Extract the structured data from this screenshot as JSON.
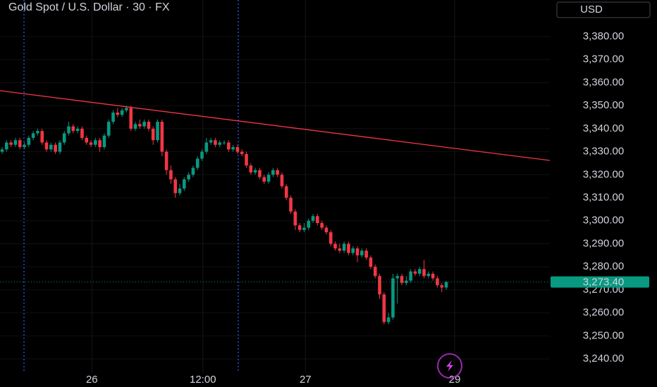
{
  "chart_data": {
    "type": "candlestick",
    "title": "Gold Spot / U.S. Dollar · 30 · FX",
    "currency": "USD",
    "up_color": "#089981",
    "down_color": "#f23645",
    "candles": [
      [
        3330,
        3332,
        3329,
        3331
      ],
      [
        3331,
        3335,
        3330,
        3334
      ],
      [
        3334,
        3335,
        3332,
        3333
      ],
      [
        3333,
        3336,
        3332,
        3335
      ],
      [
        3335,
        3336,
        3331,
        3332
      ],
      [
        3332,
        3334,
        3331,
        3333
      ],
      [
        3333,
        3337,
        3332,
        3336
      ],
      [
        3336,
        3339,
        3335,
        3338
      ],
      [
        3338,
        3340,
        3337,
        3339
      ],
      [
        3339,
        3340,
        3333,
        3334
      ],
      [
        3334,
        3335,
        3330,
        3331
      ],
      [
        3331,
        3334,
        3330,
        3333
      ],
      [
        3333,
        3334,
        3329,
        3330
      ],
      [
        3330,
        3335,
        3329,
        3334
      ],
      [
        3334,
        3339,
        3333,
        3338
      ],
      [
        3338,
        3343,
        3337,
        3341
      ],
      [
        3341,
        3342,
        3338,
        3339
      ],
      [
        3339,
        3341,
        3338,
        3340
      ],
      [
        3340,
        3341,
        3335,
        3336
      ],
      [
        3336,
        3337,
        3333,
        3334
      ],
      [
        3334,
        3335,
        3332,
        3333
      ],
      [
        3333,
        3336,
        3332,
        3335
      ],
      [
        3335,
        3336,
        3330,
        3332
      ],
      [
        3332,
        3338,
        3331,
        3337
      ],
      [
        3337,
        3344,
        3336,
        3343
      ],
      [
        3343,
        3348,
        3342,
        3347
      ],
      [
        3347,
        3349,
        3345,
        3346
      ],
      [
        3346,
        3349,
        3345,
        3348
      ],
      [
        3348,
        3350,
        3347,
        3349
      ],
      [
        3349,
        3350,
        3339,
        3340
      ],
      [
        3340,
        3343,
        3339,
        3342
      ],
      [
        3342,
        3344,
        3340,
        3341
      ],
      [
        3341,
        3344,
        3340,
        3343
      ],
      [
        3343,
        3344,
        3339,
        3340
      ],
      [
        3340,
        3341,
        3333,
        3335
      ],
      [
        3335,
        3344,
        3334,
        3343
      ],
      [
        3343,
        3344,
        3328,
        3330
      ],
      [
        3330,
        3331,
        3320,
        3322
      ],
      [
        3322,
        3324,
        3316,
        3318
      ],
      [
        3318,
        3319,
        3310,
        3312
      ],
      [
        3312,
        3316,
        3311,
        3314
      ],
      [
        3314,
        3319,
        3313,
        3318
      ],
      [
        3318,
        3321,
        3317,
        3320
      ],
      [
        3320,
        3324,
        3319,
        3323
      ],
      [
        3323,
        3328,
        3322,
        3327
      ],
      [
        3327,
        3331,
        3326,
        3330
      ],
      [
        3330,
        3336,
        3329,
        3334
      ],
      [
        3334,
        3336,
        3333,
        3335
      ],
      [
        3335,
        3336,
        3332,
        3333
      ],
      [
        3333,
        3335,
        3332,
        3334
      ],
      [
        3334,
        3335,
        3333,
        3334
      ],
      [
        3334,
        3335,
        3330,
        3331
      ],
      [
        3331,
        3333,
        3330,
        3332
      ],
      [
        3332,
        3333,
        3329,
        3330
      ],
      [
        3330,
        3331,
        3328,
        3329
      ],
      [
        3329,
        3330,
        3323,
        3324
      ],
      [
        3324,
        3325,
        3320,
        3321
      ],
      [
        3321,
        3323,
        3320,
        3322
      ],
      [
        3322,
        3323,
        3318,
        3319
      ],
      [
        3319,
        3320,
        3316,
        3317
      ],
      [
        3317,
        3321,
        3316,
        3320
      ],
      [
        3320,
        3323,
        3319,
        3322
      ],
      [
        3322,
        3323,
        3319,
        3320
      ],
      [
        3320,
        3321,
        3314,
        3315
      ],
      [
        3315,
        3316,
        3309,
        3310
      ],
      [
        3310,
        3311,
        3303,
        3304
      ],
      [
        3304,
        3305,
        3296,
        3298
      ],
      [
        3298,
        3299,
        3295,
        3296
      ],
      [
        3296,
        3299,
        3295,
        3297
      ],
      [
        3297,
        3301,
        3296,
        3300
      ],
      [
        3300,
        3303,
        3299,
        3302
      ],
      [
        3302,
        3303,
        3298,
        3299
      ],
      [
        3299,
        3300,
        3296,
        3297
      ],
      [
        3297,
        3298,
        3294,
        3295
      ],
      [
        3295,
        3296,
        3289,
        3290
      ],
      [
        3290,
        3291,
        3287,
        3288
      ],
      [
        3288,
        3290,
        3286,
        3287
      ],
      [
        3287,
        3291,
        3286,
        3290
      ],
      [
        3290,
        3291,
        3285,
        3286
      ],
      [
        3286,
        3289,
        3285,
        3288
      ],
      [
        3288,
        3289,
        3282,
        3285
      ],
      [
        3285,
        3288,
        3284,
        3287
      ],
      [
        3287,
        3288,
        3283,
        3284
      ],
      [
        3284,
        3285,
        3279,
        3280
      ],
      [
        3280,
        3281,
        3275,
        3276
      ],
      [
        3276,
        3277,
        3266,
        3268
      ],
      [
        3268,
        3269,
        3255,
        3256
      ],
      [
        3256,
        3260,
        3255,
        3258
      ],
      [
        3258,
        3277,
        3257,
        3275
      ],
      [
        3275,
        3277,
        3264,
        3276
      ],
      [
        3276,
        3277,
        3272,
        3273
      ],
      [
        3273,
        3276,
        3272,
        3274
      ],
      [
        3274,
        3279,
        3273,
        3278
      ],
      [
        3278,
        3279,
        3276,
        3277
      ],
      [
        3277,
        3280,
        3276,
        3279
      ],
      [
        3279,
        3283,
        3275,
        3276
      ],
      [
        3276,
        3278,
        3275,
        3277
      ],
      [
        3277,
        3278,
        3274,
        3275
      ],
      [
        3275,
        3276,
        3271,
        3272
      ],
      [
        3272,
        3273,
        3269,
        3271
      ],
      [
        3271,
        3274,
        3270,
        3273.4
      ]
    ],
    "xlim": [
      -0.48,
      123.33
    ],
    "xticks": [
      {
        "value": 20.2,
        "label": "26"
      },
      {
        "value": 45.2,
        "label": "12:00"
      },
      {
        "value": 68.3,
        "label": "27"
      },
      {
        "value": 101.9,
        "label": "29"
      }
    ],
    "ylim": [
      3233.9,
      3395.9
    ],
    "yticks": [
      {
        "value": 3240,
        "label": "3,240.00"
      },
      {
        "value": 3250,
        "label": "3,250.00"
      },
      {
        "value": 3260,
        "label": "3,260.00"
      },
      {
        "value": 3270,
        "label": "3,270.00"
      },
      {
        "value": 3280,
        "label": "3,280.00"
      },
      {
        "value": 3290,
        "label": "3,290.00"
      },
      {
        "value": 3300,
        "label": "3,300.00"
      },
      {
        "value": 3310,
        "label": "3,310.00"
      },
      {
        "value": 3320,
        "label": "3,320.00"
      },
      {
        "value": 3330,
        "label": "3,330.00"
      },
      {
        "value": 3340,
        "label": "3,340.00"
      },
      {
        "value": 3350,
        "label": "3,350.00"
      },
      {
        "value": 3360,
        "label": "3,360.00"
      },
      {
        "value": 3370,
        "label": "3,370.00"
      },
      {
        "value": 3380,
        "label": "3,380.00"
      }
    ],
    "last_price": {
      "value": 3273.4,
      "label": "3,273.40"
    },
    "trendline": [
      [
        -0.48,
        3356.5
      ],
      [
        123.33,
        3326.2
      ]
    ],
    "session_lines": [
      4.92,
      53.17
    ]
  }
}
